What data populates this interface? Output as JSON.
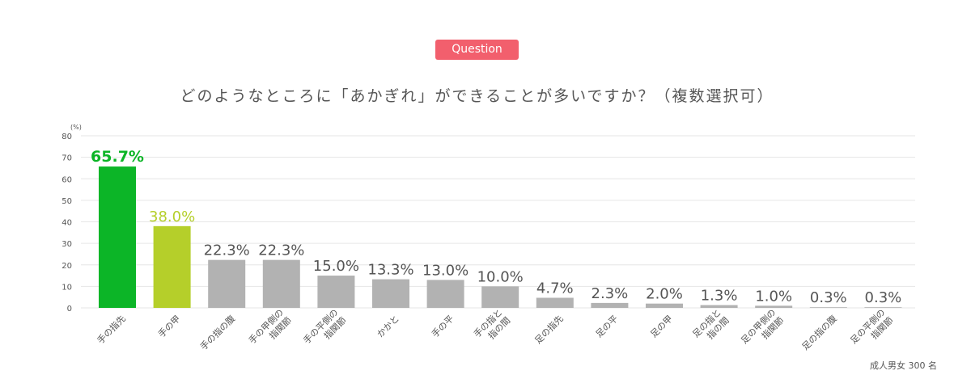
{
  "badge": "Question",
  "question": "どのようなところに「あかぎれ」ができることが多いですか？（複数選択可）",
  "footnote": "成人男女 300 名",
  "chart_data": {
    "type": "bar",
    "unit_label": "(%)",
    "ylim": [
      0,
      80
    ],
    "yticks": [
      0,
      10,
      20,
      30,
      40,
      50,
      60,
      70,
      80
    ],
    "grid": true,
    "categories": [
      "手の指先",
      "手の甲",
      "手の指の腹",
      "手の甲側の\n指関節",
      "手の平側の\n指関節",
      "かかと",
      "手の平",
      "手の指と\n指の間",
      "足の指先",
      "足の平",
      "足の甲",
      "足の指と\n指の間",
      "足の甲側の\n指関節",
      "足の指の腹",
      "足の平側の\n指関節"
    ],
    "values": [
      65.7,
      38.0,
      22.3,
      22.3,
      15.0,
      13.3,
      13.0,
      10.0,
      4.7,
      2.3,
      2.0,
      1.3,
      1.0,
      0.3,
      0.3
    ],
    "value_labels": [
      "65.7%",
      "38.0%",
      "22.3%",
      "22.3%",
      "15.0%",
      "13.3%",
      "13.0%",
      "10.0%",
      "4.7%",
      "2.3%",
      "2.0%",
      "1.3%",
      "1.0%",
      "0.3%",
      "0.3%"
    ],
    "colors": {
      "first": "#0cb527",
      "second": "#b5cf2a",
      "rest": "#b2b2b2",
      "label_default": "#555555",
      "grid": "#e6e6e6"
    }
  }
}
